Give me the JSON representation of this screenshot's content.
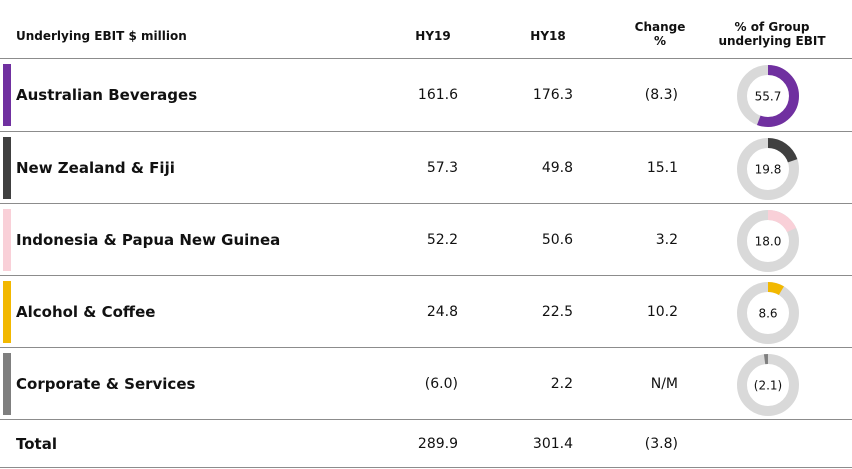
{
  "header": {
    "segment_col": "Underlying EBIT $ million",
    "hy19_col": "HY19",
    "hy18_col": "HY18",
    "change_col_line1": "Change",
    "change_col_line2": "%",
    "share_col_line1": "% of Group",
    "share_col_line2": "underlying EBIT"
  },
  "colors": {
    "purple": "#7030a0",
    "dark_grey": "#404040",
    "pink": "#f9d0d8",
    "yellow": "#f2b800",
    "grey": "#7f7f7f",
    "ring": "#d9d9d9"
  },
  "rows": [
    {
      "name": "Australian Beverages",
      "hy19": "161.6",
      "hy18": "176.3",
      "change": "(8.3)",
      "share_label": "55.7",
      "share_value": 55.7,
      "color": "#7030a0"
    },
    {
      "name": "New Zealand & Fiji",
      "hy19": "57.3",
      "hy18": "49.8",
      "change": "15.1",
      "share_label": "19.8",
      "share_value": 19.8,
      "color": "#404040"
    },
    {
      "name": "Indonesia & Papua New Guinea",
      "hy19": "52.2",
      "hy18": "50.6",
      "change": "3.2",
      "share_label": "18.0",
      "share_value": 18.0,
      "color": "#f9d0d8"
    },
    {
      "name": "Alcohol & Coffee",
      "hy19": "24.8",
      "hy18": "22.5",
      "change": "10.2",
      "share_label": "8.6",
      "share_value": 8.6,
      "color": "#f2b800"
    },
    {
      "name": "Corporate & Services",
      "hy19": "(6.0)",
      "hy18": "2.2",
      "change": "N/M",
      "share_label": "(2.1)",
      "share_value": -2.1,
      "color": "#7f7f7f"
    }
  ],
  "total": {
    "name": "Total",
    "hy19": "289.9",
    "hy18": "301.4",
    "change": "(3.8)"
  }
}
